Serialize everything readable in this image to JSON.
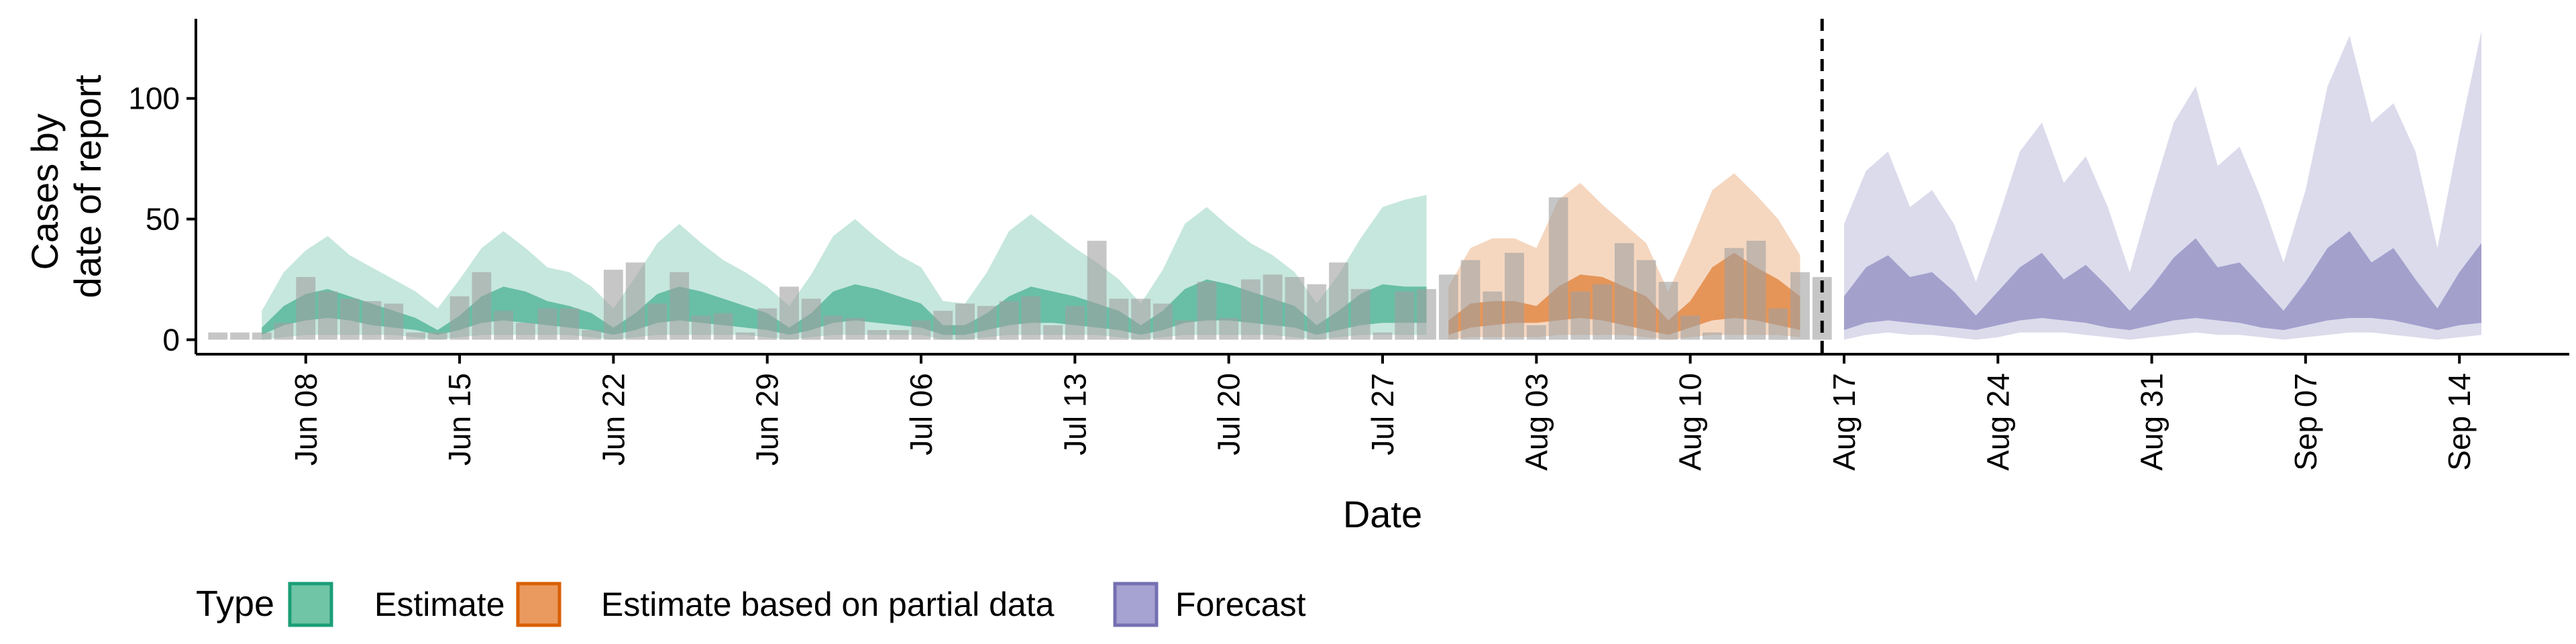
{
  "chart_data": {
    "type": "area",
    "title": "",
    "xlabel": "Date",
    "ylabel_lines": [
      "Cases by",
      "date of report"
    ],
    "x_start": "2020-06-03",
    "x_end": "2020-09-19",
    "ylim": [
      -6,
      133
    ],
    "yticks": [
      0,
      50,
      100
    ],
    "xticks": [
      {
        "date": "2020-06-08",
        "label": "Jun 08"
      },
      {
        "date": "2020-06-15",
        "label": "Jun 15"
      },
      {
        "date": "2020-06-22",
        "label": "Jun 22"
      },
      {
        "date": "2020-06-29",
        "label": "Jun 29"
      },
      {
        "date": "2020-07-06",
        "label": "Jul 06"
      },
      {
        "date": "2020-07-13",
        "label": "Jul 13"
      },
      {
        "date": "2020-07-20",
        "label": "Jul 20"
      },
      {
        "date": "2020-07-27",
        "label": "Jul 27"
      },
      {
        "date": "2020-08-03",
        "label": "Aug 03"
      },
      {
        "date": "2020-08-10",
        "label": "Aug 10"
      },
      {
        "date": "2020-08-17",
        "label": "Aug 17"
      },
      {
        "date": "2020-08-24",
        "label": "Aug 24"
      },
      {
        "date": "2020-08-31",
        "label": "Aug 31"
      },
      {
        "date": "2020-09-07",
        "label": "Sep 07"
      },
      {
        "date": "2020-09-14",
        "label": "Sep 14"
      }
    ],
    "forecast_line_date": "2020-08-16",
    "grid": false,
    "legend": {
      "position": "bottom-left",
      "title": "Type",
      "entries": [
        {
          "label": "Estimate",
          "fill": "#6FC5A5",
          "stroke": "#1B9E77"
        },
        {
          "label": "Estimate based on partial data",
          "fill": "#EA9A5F",
          "stroke": "#D95F02"
        },
        {
          "label": "Forecast",
          "fill": "#A6A2D1",
          "stroke": "#7570B3"
        }
      ]
    },
    "colors": {
      "Estimate": {
        "band": "#1B9E77"
      },
      "Estimate based on partial data": {
        "band": "#D95F02"
      },
      "Forecast": {
        "band": "#7570B3"
      },
      "bars": "#A0A0A0"
    },
    "series": [
      {
        "name": "Estimate",
        "dates": [
          "2020-06-06",
          "2020-06-07",
          "2020-06-08",
          "2020-06-09",
          "2020-06-10",
          "2020-06-11",
          "2020-06-12",
          "2020-06-13",
          "2020-06-14",
          "2020-06-15",
          "2020-06-16",
          "2020-06-17",
          "2020-06-18",
          "2020-06-19",
          "2020-06-20",
          "2020-06-21",
          "2020-06-22",
          "2020-06-23",
          "2020-06-24",
          "2020-06-25",
          "2020-06-26",
          "2020-06-27",
          "2020-06-28",
          "2020-06-29",
          "2020-06-30",
          "2020-07-01",
          "2020-07-02",
          "2020-07-03",
          "2020-07-04",
          "2020-07-05",
          "2020-07-06",
          "2020-07-07",
          "2020-07-08",
          "2020-07-09",
          "2020-07-10",
          "2020-07-11",
          "2020-07-12",
          "2020-07-13",
          "2020-07-14",
          "2020-07-15",
          "2020-07-16",
          "2020-07-17",
          "2020-07-18",
          "2020-07-19",
          "2020-07-20",
          "2020-07-21",
          "2020-07-22",
          "2020-07-23",
          "2020-07-24",
          "2020-07-25",
          "2020-07-26",
          "2020-07-27",
          "2020-07-28",
          "2020-07-29"
        ],
        "lower90": [
          0,
          1,
          2,
          2,
          2,
          2,
          2,
          1,
          0,
          1,
          2,
          2,
          2,
          2,
          2,
          1,
          0,
          1,
          2,
          2,
          2,
          2,
          2,
          1,
          0,
          1,
          2,
          2,
          2,
          2,
          2,
          0,
          0,
          1,
          2,
          2,
          2,
          2,
          2,
          1,
          0,
          1,
          2,
          2,
          2,
          2,
          2,
          1,
          0,
          1,
          2,
          2,
          2,
          2
        ],
        "lower50": [
          2,
          6,
          8,
          9,
          8,
          6,
          5,
          4,
          2,
          4,
          7,
          8,
          7,
          6,
          5,
          4,
          2,
          4,
          7,
          8,
          7,
          6,
          5,
          4,
          2,
          4,
          7,
          8,
          7,
          6,
          5,
          2,
          2,
          4,
          6,
          7,
          7,
          6,
          5,
          4,
          2,
          4,
          7,
          8,
          8,
          7,
          6,
          5,
          2,
          4,
          6,
          7,
          7,
          7
        ],
        "upper50": [
          5,
          14,
          19,
          21,
          18,
          15,
          12,
          9,
          4,
          10,
          18,
          22,
          20,
          16,
          14,
          11,
          5,
          11,
          19,
          22,
          20,
          17,
          14,
          11,
          5,
          11,
          20,
          23,
          21,
          18,
          15,
          6,
          6,
          11,
          18,
          22,
          20,
          18,
          15,
          12,
          6,
          12,
          21,
          25,
          23,
          20,
          17,
          14,
          6,
          12,
          19,
          23,
          22,
          22
        ],
        "upper90": [
          12,
          28,
          37,
          43,
          35,
          30,
          25,
          20,
          13,
          25,
          38,
          45,
          38,
          30,
          28,
          22,
          13,
          26,
          40,
          48,
          40,
          33,
          28,
          22,
          14,
          27,
          43,
          50,
          42,
          35,
          30,
          16,
          15,
          28,
          45,
          52,
          45,
          38,
          32,
          25,
          15,
          29,
          48,
          55,
          47,
          40,
          35,
          28,
          15,
          27,
          42,
          55,
          58,
          60
        ]
      },
      {
        "name": "Estimate based on partial data",
        "dates": [
          "2020-07-30",
          "2020-07-31",
          "2020-08-01",
          "2020-08-02",
          "2020-08-03",
          "2020-08-04",
          "2020-08-05",
          "2020-08-06",
          "2020-08-07",
          "2020-08-08",
          "2020-08-09",
          "2020-08-10",
          "2020-08-11",
          "2020-08-12",
          "2020-08-13",
          "2020-08-14",
          "2020-08-15"
        ],
        "lower90": [
          0,
          1,
          1,
          1,
          1,
          2,
          2,
          2,
          2,
          1,
          0,
          1,
          2,
          2,
          2,
          2,
          1
        ],
        "lower50": [
          2,
          5,
          6,
          7,
          7,
          8,
          9,
          8,
          6,
          4,
          2,
          5,
          8,
          9,
          8,
          6,
          4
        ],
        "upper50": [
          8,
          15,
          16,
          16,
          14,
          22,
          27,
          26,
          22,
          18,
          8,
          16,
          30,
          36,
          30,
          25,
          18
        ],
        "upper90": [
          22,
          38,
          42,
          42,
          38,
          58,
          65,
          56,
          48,
          40,
          20,
          40,
          62,
          69,
          60,
          50,
          35
        ]
      },
      {
        "name": "Forecast",
        "dates": [
          "2020-08-17",
          "2020-08-18",
          "2020-08-19",
          "2020-08-20",
          "2020-08-21",
          "2020-08-22",
          "2020-08-23",
          "2020-08-24",
          "2020-08-25",
          "2020-08-26",
          "2020-08-27",
          "2020-08-28",
          "2020-08-29",
          "2020-08-30",
          "2020-08-31",
          "2020-09-01",
          "2020-09-02",
          "2020-09-03",
          "2020-09-04",
          "2020-09-05",
          "2020-09-06",
          "2020-09-07",
          "2020-09-08",
          "2020-09-09",
          "2020-09-10",
          "2020-09-11",
          "2020-09-12",
          "2020-09-13",
          "2020-09-14",
          "2020-09-15"
        ],
        "lower90": [
          0,
          2,
          3,
          2,
          2,
          1,
          0,
          1,
          3,
          3,
          3,
          2,
          1,
          0,
          1,
          2,
          3,
          2,
          2,
          1,
          0,
          1,
          2,
          3,
          3,
          2,
          1,
          0,
          1,
          2
        ],
        "lower50": [
          4,
          7,
          8,
          7,
          6,
          5,
          4,
          6,
          8,
          9,
          8,
          7,
          5,
          4,
          6,
          8,
          9,
          8,
          7,
          5,
          4,
          6,
          8,
          9,
          9,
          8,
          6,
          4,
          6,
          7
        ],
        "upper50": [
          18,
          30,
          35,
          26,
          28,
          20,
          10,
          20,
          30,
          36,
          25,
          31,
          22,
          12,
          22,
          34,
          42,
          30,
          32,
          22,
          12,
          24,
          38,
          45,
          32,
          38,
          25,
          13,
          28,
          40
        ],
        "upper90": [
          48,
          70,
          78,
          55,
          62,
          48,
          24,
          50,
          78,
          90,
          65,
          76,
          55,
          28,
          60,
          90,
          105,
          72,
          80,
          58,
          32,
          62,
          105,
          126,
          90,
          98,
          78,
          38,
          85,
          128
        ]
      }
    ],
    "bars": {
      "name": "Cases by date of report",
      "dates": [
        "2020-06-04",
        "2020-06-05",
        "2020-06-06",
        "2020-06-07",
        "2020-06-08",
        "2020-06-09",
        "2020-06-10",
        "2020-06-11",
        "2020-06-12",
        "2020-06-13",
        "2020-06-14",
        "2020-06-15",
        "2020-06-16",
        "2020-06-17",
        "2020-06-18",
        "2020-06-19",
        "2020-06-20",
        "2020-06-21",
        "2020-06-22",
        "2020-06-23",
        "2020-06-24",
        "2020-06-25",
        "2020-06-26",
        "2020-06-27",
        "2020-06-28",
        "2020-06-29",
        "2020-06-30",
        "2020-07-01",
        "2020-07-02",
        "2020-07-03",
        "2020-07-04",
        "2020-07-05",
        "2020-07-06",
        "2020-07-07",
        "2020-07-08",
        "2020-07-09",
        "2020-07-10",
        "2020-07-11",
        "2020-07-12",
        "2020-07-13",
        "2020-07-14",
        "2020-07-15",
        "2020-07-16",
        "2020-07-17",
        "2020-07-18",
        "2020-07-19",
        "2020-07-20",
        "2020-07-21",
        "2020-07-22",
        "2020-07-23",
        "2020-07-24",
        "2020-07-25",
        "2020-07-26",
        "2020-07-27",
        "2020-07-28",
        "2020-07-29",
        "2020-07-30",
        "2020-07-31",
        "2020-08-01",
        "2020-08-02",
        "2020-08-03",
        "2020-08-04",
        "2020-08-05",
        "2020-08-06",
        "2020-08-07",
        "2020-08-08",
        "2020-08-09",
        "2020-08-10",
        "2020-08-11",
        "2020-08-12",
        "2020-08-13",
        "2020-08-14",
        "2020-08-15",
        "2020-08-16"
      ],
      "values": [
        3,
        3,
        3,
        7,
        26,
        20,
        17,
        16,
        15,
        3,
        3,
        18,
        28,
        12,
        7,
        13,
        13,
        4,
        29,
        32,
        15,
        28,
        10,
        11,
        3,
        13,
        22,
        17,
        10,
        9,
        4,
        4,
        8,
        12,
        15,
        14,
        16,
        18,
        6,
        14,
        41,
        17,
        17,
        15,
        8,
        24,
        9,
        25,
        27,
        26,
        23,
        32,
        21,
        3,
        20,
        21,
        27,
        33,
        20,
        36,
        6,
        59,
        20,
        23,
        40,
        33,
        24,
        10,
        3,
        38,
        41,
        13,
        28,
        26
      ]
    }
  }
}
